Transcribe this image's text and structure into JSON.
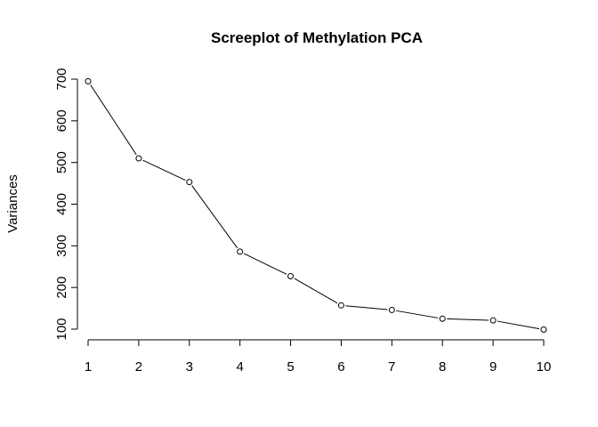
{
  "chart_data": {
    "type": "line",
    "title": "Screeplot of Methylation PCA",
    "xlabel": "",
    "ylabel": "Variances",
    "x": [
      1,
      2,
      3,
      4,
      5,
      6,
      7,
      8,
      9,
      10
    ],
    "values": [
      695,
      510,
      453,
      286,
      227,
      157,
      146,
      125,
      121,
      99
    ],
    "x_ticks": [
      "1",
      "2",
      "3",
      "4",
      "5",
      "6",
      "7",
      "8",
      "9",
      "10"
    ],
    "y_ticks": [
      "100",
      "200",
      "300",
      "400",
      "500",
      "600",
      "700"
    ],
    "xlim": [
      1,
      10
    ],
    "ylim": [
      100,
      700
    ],
    "marker": "open-circle",
    "grid": false,
    "line_color": "#000000"
  }
}
